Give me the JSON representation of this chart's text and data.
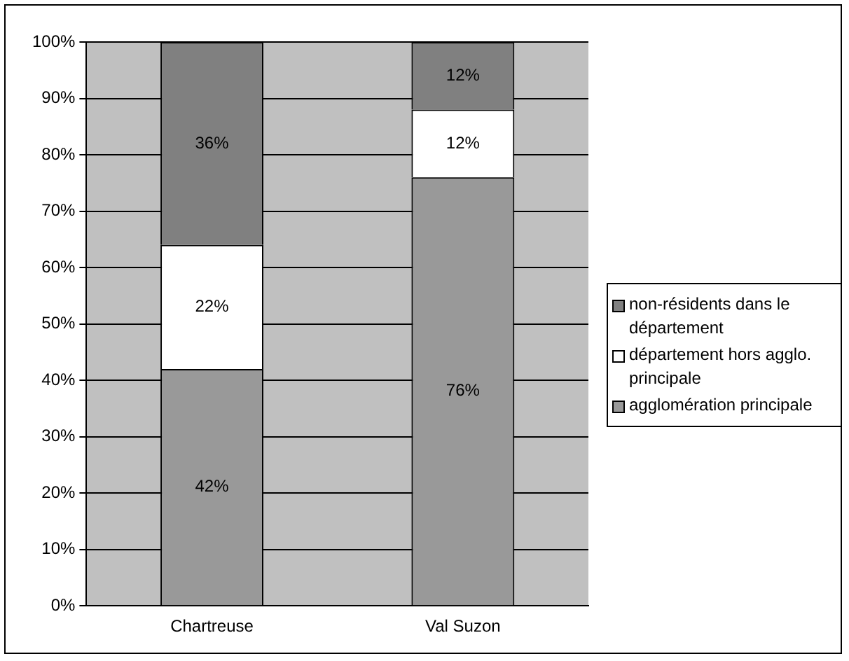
{
  "chart_data": {
    "type": "bar",
    "stacked": true,
    "categories": [
      "Chartreuse",
      "Val Suzon"
    ],
    "series": [
      {
        "name": "agglomération principale",
        "color": "#999999",
        "values": [
          42,
          76
        ],
        "value_labels": [
          "42%",
          "76%"
        ]
      },
      {
        "name": "département hors agglo. principale",
        "color": "#ffffff",
        "values": [
          22,
          12
        ],
        "value_labels": [
          "22%",
          "12%"
        ]
      },
      {
        "name": "non-résidents dans le département",
        "color": "#808080",
        "values": [
          36,
          12
        ],
        "value_labels": [
          "36%",
          "12%"
        ]
      }
    ],
    "ylim": [
      0,
      100
    ],
    "yticks": [
      {
        "value": 0,
        "label": "0%"
      },
      {
        "value": 10,
        "label": "10%"
      },
      {
        "value": 20,
        "label": "20%"
      },
      {
        "value": 30,
        "label": "30%"
      },
      {
        "value": 40,
        "label": "40%"
      },
      {
        "value": 50,
        "label": "50%"
      },
      {
        "value": 60,
        "label": "60%"
      },
      {
        "value": 70,
        "label": "70%"
      },
      {
        "value": 80,
        "label": "80%"
      },
      {
        "value": 90,
        "label": "90%"
      },
      {
        "value": 100,
        "label": "100%"
      }
    ],
    "grid": "y",
    "legend": "right"
  }
}
